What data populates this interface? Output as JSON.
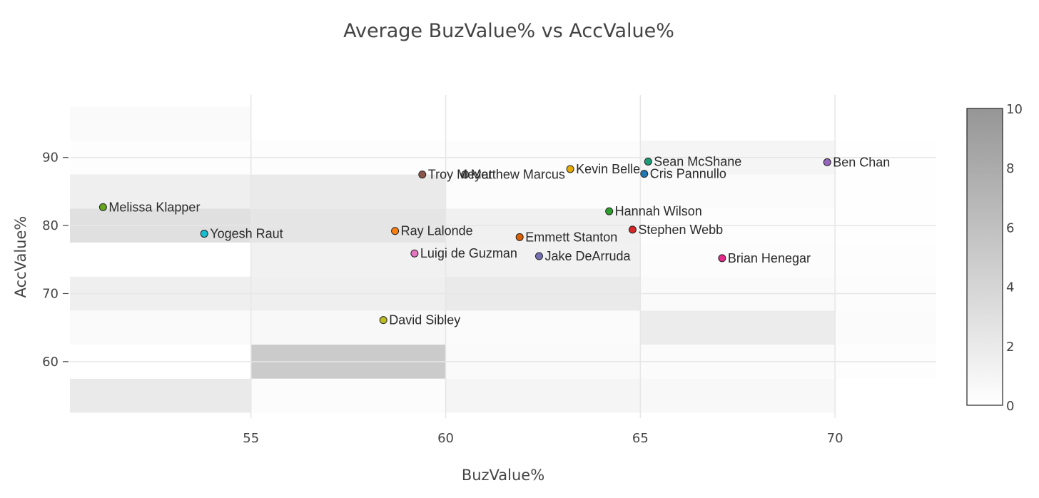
{
  "chart_data": {
    "type": "scatter",
    "title": "Average BuzValue% vs AccValue%",
    "xlabel": "BuzValue%",
    "ylabel": "AccValue%",
    "xlim": [
      50.35,
      72.6
    ],
    "ylim": [
      51.7,
      99.2
    ],
    "x_ticks": [
      55,
      60,
      65,
      70
    ],
    "y_ticks": [
      60,
      70,
      80,
      90
    ],
    "grid": true,
    "points": [
      {
        "label": "Melissa Klapper",
        "x": 51.2,
        "y": 82.7,
        "color": "#66a61e"
      },
      {
        "label": "Yogesh Raut",
        "x": 53.8,
        "y": 78.8,
        "color": "#17becf"
      },
      {
        "label": "Troy Meyer",
        "x": 59.4,
        "y": 87.5,
        "color": "#8c564b"
      },
      {
        "label": "Matthew Marcus",
        "x": 60.5,
        "y": 87.5,
        "color": "#7f7f7f"
      },
      {
        "label": "Ray Lalonde",
        "x": 58.7,
        "y": 79.2,
        "color": "#ff7f0e"
      },
      {
        "label": "Luigi de Guzman",
        "x": 59.2,
        "y": 75.9,
        "color": "#e377c2"
      },
      {
        "label": "David Sibley",
        "x": 58.4,
        "y": 66.1,
        "color": "#bcbd22"
      },
      {
        "label": "Kevin Belle",
        "x": 63.2,
        "y": 88.3,
        "color": "#e6ab02"
      },
      {
        "label": "Sean McShane",
        "x": 65.2,
        "y": 89.4,
        "color": "#1b9e77"
      },
      {
        "label": "Cris Pannullo",
        "x": 65.1,
        "y": 87.6,
        "color": "#1f77b4"
      },
      {
        "label": "Ben Chan",
        "x": 69.8,
        "y": 89.3,
        "color": "#9467bd"
      },
      {
        "label": "Hannah Wilson",
        "x": 64.2,
        "y": 82.1,
        "color": "#2ca02c"
      },
      {
        "label": "Stephen Webb",
        "x": 64.8,
        "y": 79.4,
        "color": "#d62728"
      },
      {
        "label": "Emmett Stanton",
        "x": 61.9,
        "y": 78.3,
        "color": "#d95f02"
      },
      {
        "label": "Jake DeArruda",
        "x": 62.4,
        "y": 75.5,
        "color": "#7570b3"
      },
      {
        "label": "Brian Henegar",
        "x": 67.1,
        "y": 75.2,
        "color": "#e7298a"
      }
    ],
    "heatmap": {
      "x_edges": [
        50.35,
        55,
        60,
        65,
        70,
        72.6
      ],
      "y_edges": [
        52.5,
        57.5,
        62.5,
        67.5,
        72.5,
        77.5,
        82.5,
        87.5,
        92.5,
        97.5
      ],
      "counts": [
        [
          2,
          0.3,
          1,
          0.7,
          0
        ],
        [
          0,
          5,
          0.5,
          0.4,
          0.2
        ],
        [
          0.5,
          0.7,
          0.4,
          1.8,
          0.4
        ],
        [
          1.5,
          1.5,
          2,
          0.5,
          0.3
        ],
        [
          0,
          1.3,
          1.3,
          0.3,
          0.2
        ],
        [
          3,
          2.5,
          1.4,
          0.2,
          0.1
        ],
        [
          1.5,
          2,
          0.3,
          0.4,
          0.1
        ],
        [
          0.2,
          0.2,
          0.3,
          1,
          0.1
        ],
        [
          0.5,
          0,
          0,
          0,
          0
        ]
      ]
    },
    "colorbar": {
      "min": 0,
      "max": 10,
      "ticks": [
        0,
        2,
        4,
        6,
        8,
        10
      ]
    }
  }
}
